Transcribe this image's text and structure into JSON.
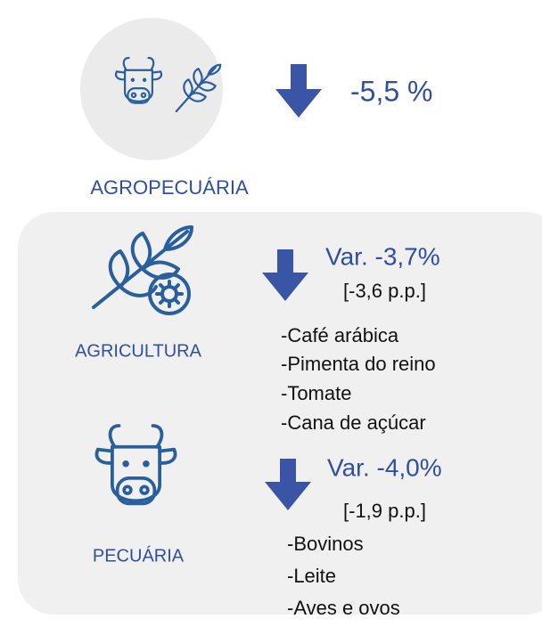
{
  "header": {
    "value": "-5,5 %",
    "label": "AGROPECUÁRIA"
  },
  "sections": [
    {
      "label": "AGRICULTURA",
      "variation": "Var. -3,7%",
      "contribution": "[-3,6 p.p.]",
      "items": [
        "-Café arábica",
        "-Pimenta do reino",
        "-Tomate",
        "-Cana de açúcar"
      ]
    },
    {
      "label": "PECUÁRIA",
      "variation": "Var. -4,0%",
      "contribution": "[-1,9 p.p.]",
      "items": [
        "-Bovinos",
        "-Leite",
        "-Aves e ovos"
      ]
    }
  ]
}
